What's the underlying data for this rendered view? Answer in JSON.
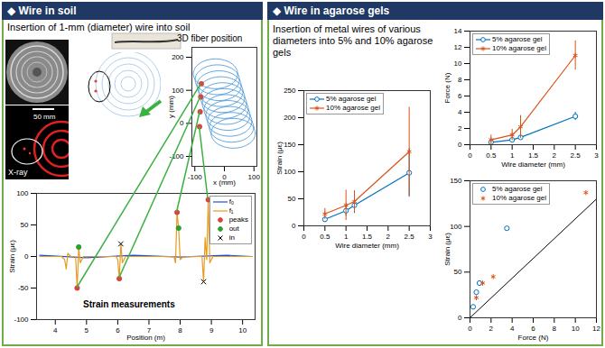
{
  "panels": [
    {
      "header": "◆ Wire in soil",
      "subtitle": "Insertion of 1-mm (diameter) wire into soil",
      "image_labels": [
        "50 mm",
        "X-ray"
      ]
    },
    {
      "header": "◆ Wire in agarose gels",
      "subtitle": "Insertion of metal wires of various diameters into 5% and 10% agarose gels"
    }
  ],
  "chart_data": [
    {
      "type": "line",
      "title": "3D fiber position",
      "xlabel": "x (mm)",
      "ylabel": "y (mm)",
      "xlim": [
        -110,
        110
      ],
      "xticks": [
        -100,
        0,
        100
      ],
      "ylim": [
        -130,
        230
      ],
      "yticks": [
        -100,
        0,
        100,
        200
      ],
      "color": "#3b8fd6",
      "coils": {
        "cx": [
          -30,
          -24,
          -18,
          -12,
          -6,
          0,
          6,
          12,
          18,
          24,
          30
        ],
        "cy": [
          150,
          132,
          114,
          96,
          78,
          60,
          42,
          24,
          6,
          -12,
          -30
        ],
        "rx": 75,
        "ry": 45
      },
      "peaks": {
        "x": [
          -78,
          -80,
          -82,
          -84
        ],
        "y": [
          120,
          80,
          35,
          -10
        ],
        "color": "#e0403a",
        "marker": "circle"
      }
    },
    {
      "type": "line",
      "annotation": "Strain measurements",
      "xlabel": "Position (m)",
      "ylabel": "Strain (με)",
      "xlim": [
        3.4,
        10.4
      ],
      "xticks": [
        4,
        5,
        6,
        7,
        8,
        9,
        10
      ],
      "ylim": [
        -100,
        100
      ],
      "yticks": [
        -100,
        -50,
        0,
        50,
        100
      ],
      "legend": "top-right",
      "series": [
        {
          "name": "f₀",
          "color": "#1f4fe0",
          "x": [
            3.5,
            5,
            6.5,
            8,
            9.5,
            10.3
          ],
          "values": [
            2,
            -2,
            2,
            -1,
            2,
            0
          ]
        },
        {
          "name": "f₁",
          "color": "#e69b1e",
          "x": [
            3.5,
            4.2,
            4.3,
            4.35,
            4.4,
            4.5,
            4.65,
            4.7,
            4.75,
            4.8,
            4.9,
            5.95,
            6.0,
            6.05,
            6.1,
            6.15,
            6.25,
            7.8,
            7.85,
            7.9,
            7.95,
            8.0,
            8.1,
            8.7,
            8.75,
            8.8,
            8.85,
            8.9,
            8.95,
            9.05,
            10.3
          ],
          "values": [
            0,
            0,
            -5,
            -20,
            5,
            0,
            0,
            -50,
            15,
            -10,
            0,
            0,
            -5,
            -35,
            20,
            -10,
            0,
            0,
            -10,
            70,
            45,
            -5,
            0,
            0,
            -40,
            30,
            -5,
            90,
            -10,
            0,
            0
          ]
        },
        {
          "name": "peaks",
          "type": "scatter",
          "marker": "circle",
          "color": "#e0403a",
          "x": [
            4.7,
            6.05,
            7.9,
            8.9
          ],
          "values": [
            -50,
            -35,
            70,
            90
          ]
        },
        {
          "name": "out",
          "type": "scatter",
          "marker": "circle",
          "color": "#2ca02c",
          "x": [
            4.75,
            7.95
          ],
          "values": [
            15,
            45
          ]
        },
        {
          "name": "in",
          "type": "scatter",
          "marker": "times",
          "color": "#000000",
          "x": [
            6.1,
            8.75
          ],
          "values": [
            20,
            -40
          ]
        }
      ]
    },
    {
      "type": "line",
      "xlabel": "Wire diameter (mm)",
      "ylabel": "Strain (με)",
      "xlim": [
        0,
        3
      ],
      "xticks": [
        0,
        0.5,
        1,
        1.5,
        2,
        2.5,
        3
      ],
      "ylim": [
        0,
        250
      ],
      "yticks": [
        0,
        50,
        100,
        150,
        200,
        250
      ],
      "legend": "top-left",
      "x": [
        0.5,
        1,
        1.2,
        2.5
      ],
      "series": [
        {
          "name": "5% agarose gel",
          "color": "#0072bd",
          "marker": "open-circle",
          "values": [
            12,
            28,
            38,
            98
          ],
          "errors": [
            5,
            10,
            15,
            45
          ]
        },
        {
          "name": "10% agarose gel",
          "color": "#d95319",
          "marker": "asterisk",
          "values": [
            22,
            38,
            45,
            137
          ],
          "errors": [
            10,
            28,
            20,
            82
          ]
        }
      ]
    },
    {
      "type": "line",
      "xlabel": "Wire diameter (mm)",
      "ylabel": "Force (N)",
      "xlim": [
        0,
        3
      ],
      "xticks": [
        0,
        0.5,
        1,
        1.5,
        2,
        2.5,
        3
      ],
      "ylim": [
        0,
        14
      ],
      "yticks": [
        0,
        2,
        4,
        6,
        8,
        10,
        12,
        14
      ],
      "legend": "top-left",
      "x": [
        0.5,
        1,
        1.2,
        2.5
      ],
      "series": [
        {
          "name": "5% agarose gel",
          "color": "#0072bd",
          "marker": "open-circle",
          "values": [
            0.3,
            0.6,
            0.9,
            3.5
          ],
          "errors": [
            0.15,
            0.2,
            0.2,
            0.5
          ]
        },
        {
          "name": "10% agarose gel",
          "color": "#d95319",
          "marker": "asterisk",
          "values": [
            0.6,
            1.2,
            2.2,
            11
          ],
          "errors": [
            0.6,
            0.7,
            1.4,
            1.8
          ]
        }
      ]
    },
    {
      "type": "scatter",
      "xlabel": "Force (N)",
      "ylabel": "Strain (με)",
      "xlim": [
        0,
        12
      ],
      "xticks": [
        0,
        2,
        4,
        6,
        8,
        10,
        12
      ],
      "ylim": [
        0,
        150
      ],
      "yticks": [
        0,
        50,
        100,
        150
      ],
      "legend": "top-left",
      "reference_line": {
        "x": [
          0,
          12
        ],
        "y": [
          0,
          130
        ],
        "color": "#000000"
      },
      "series": [
        {
          "name": "5% agarose gel",
          "color": "#0072bd",
          "marker": "open-circle",
          "x": [
            0.3,
            0.6,
            0.9,
            3.5
          ],
          "values": [
            12,
            28,
            38,
            98
          ]
        },
        {
          "name": "10% agarose gel",
          "color": "#d95319",
          "marker": "asterisk",
          "x": [
            0.6,
            1.2,
            2.2,
            11
          ],
          "values": [
            22,
            38,
            45,
            137
          ]
        }
      ]
    }
  ]
}
